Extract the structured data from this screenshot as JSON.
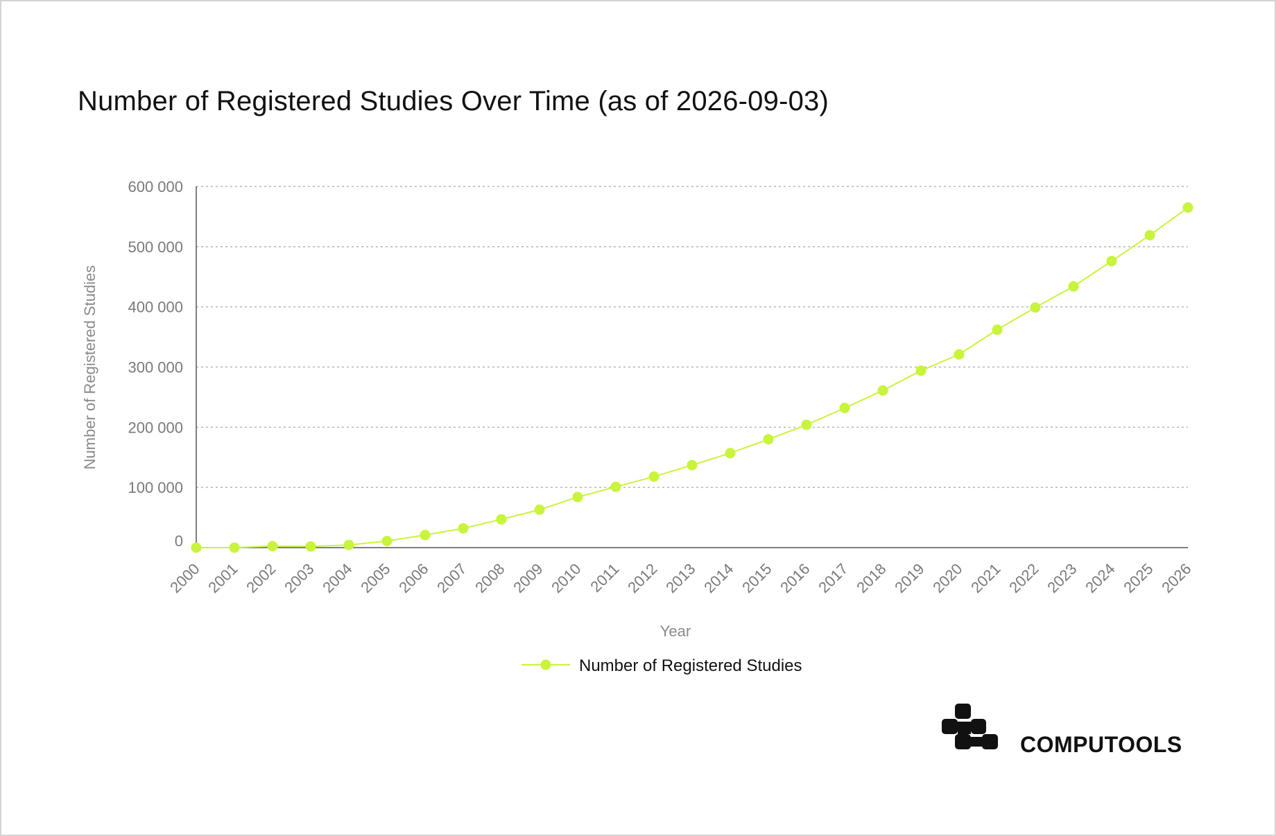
{
  "title": "Number of Registered Studies Over Time (as of 2026-09-03)",
  "brand": {
    "name": "COMPUTOOLS",
    "logo_icon": "computools-logo-icon"
  },
  "colors": {
    "series": "#c8f43c",
    "grid": "#b5b5b5",
    "axis": "#555555",
    "text": "#111111",
    "muted": "#7a7a7a"
  },
  "chart_data": {
    "type": "line",
    "title": "Number of Registered Studies Over Time (as of 2026-09-03)",
    "xlabel": "Year",
    "ylabel": "Number of Registered Studies",
    "ylim": [
      0,
      600000
    ],
    "yticks": [
      0,
      100000,
      200000,
      300000,
      400000,
      500000,
      600000
    ],
    "ytick_labels": [
      "0",
      "100 000",
      "200 000",
      "300 000",
      "400 000",
      "500 000",
      "600 000"
    ],
    "grid": "horizontal, dotted",
    "legend_position": "bottom-center",
    "x": [
      "2000",
      "2001",
      "2002",
      "2003",
      "2004",
      "2005",
      "2006",
      "2007",
      "2008",
      "2009",
      "2010",
      "2011",
      "2012",
      "2013",
      "2014",
      "2015",
      "2016",
      "2017",
      "2018",
      "2019",
      "2020",
      "2021",
      "2022",
      "2023",
      "2024",
      "2025",
      "2026"
    ],
    "series": [
      {
        "name": "Number of Registered Studies",
        "color": "#c8f43c",
        "values": [
          0,
          0,
          2500,
          2000,
          4500,
          11000,
          21000,
          32000,
          47000,
          63000,
          84000,
          101000,
          118000,
          137000,
          157000,
          180000,
          204000,
          232000,
          261000,
          294000,
          321000,
          362000,
          399000,
          434000,
          476000,
          519000,
          565000
        ]
      }
    ]
  }
}
